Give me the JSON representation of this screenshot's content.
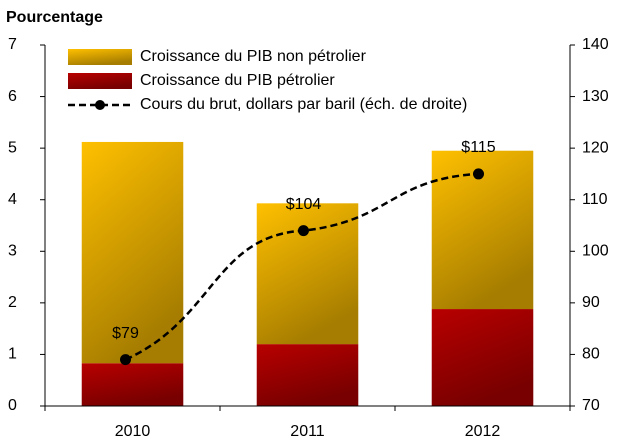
{
  "chart_data": {
    "type": "bar",
    "stacked": true,
    "ylabel": "Pourcentage",
    "categories": [
      "2010",
      "2011",
      "2012"
    ],
    "series": [
      {
        "name": "Croissance du PIB pétrolier",
        "color": "#b80000",
        "values": [
          0.83,
          1.2,
          1.88
        ]
      },
      {
        "name": "Croissance du PIB non pétrolier",
        "color": "#ffc000",
        "values": [
          4.29,
          2.73,
          3.07
        ]
      },
      {
        "name": "Cours du brut, dollars par baril (éch. de droite)",
        "type": "line",
        "axis": "y2",
        "color": "#000000",
        "values": [
          79,
          104,
          115
        ],
        "value_labels": [
          "$79",
          "$104",
          "$115"
        ]
      }
    ],
    "legend_order": [
      1,
      0,
      2
    ],
    "ylim": [
      0,
      7
    ],
    "yticks": [
      0,
      1,
      2,
      3,
      4,
      5,
      6,
      7
    ],
    "y2lim": [
      70,
      140
    ],
    "y2ticks": [
      70,
      80,
      90,
      100,
      110,
      120,
      130,
      140
    ]
  }
}
